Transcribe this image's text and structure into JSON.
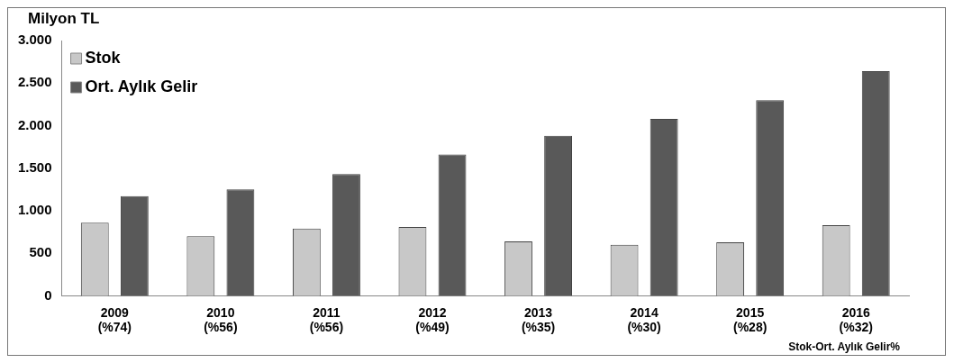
{
  "chart_data": {
    "type": "bar",
    "ylabel": "Milyon TL",
    "xlabel": "Stok-Ort. Aylık Gelir%",
    "categories": [
      "2009\n(%74)",
      "2010\n(%56)",
      "2011\n(%56)",
      "2012\n(%49)",
      "2013\n(%35)",
      "2014\n(%30)",
      "2015\n(%28)",
      "2016\n(%32)"
    ],
    "series": [
      {
        "name": "Stok",
        "color": "#c8c8c8",
        "values": [
          860,
          700,
          790,
          810,
          640,
          600,
          630,
          830
        ]
      },
      {
        "name": "Ort. Aylık Gelir",
        "color": "#595959",
        "values": [
          1170,
          1250,
          1430,
          1660,
          1880,
          2080,
          2300,
          2640
        ]
      }
    ],
    "ylim": [
      0,
      3000
    ],
    "yticks": [
      {
        "value": 0,
        "label": "0"
      },
      {
        "value": 500,
        "label": "500"
      },
      {
        "value": 1000,
        "label": "1.000"
      },
      {
        "value": 1500,
        "label": "1.500"
      },
      {
        "value": 2000,
        "label": "2.000"
      },
      {
        "value": 2500,
        "label": "2.500"
      },
      {
        "value": 3000,
        "label": "3.000"
      }
    ],
    "grid": false,
    "legend": "top left"
  }
}
